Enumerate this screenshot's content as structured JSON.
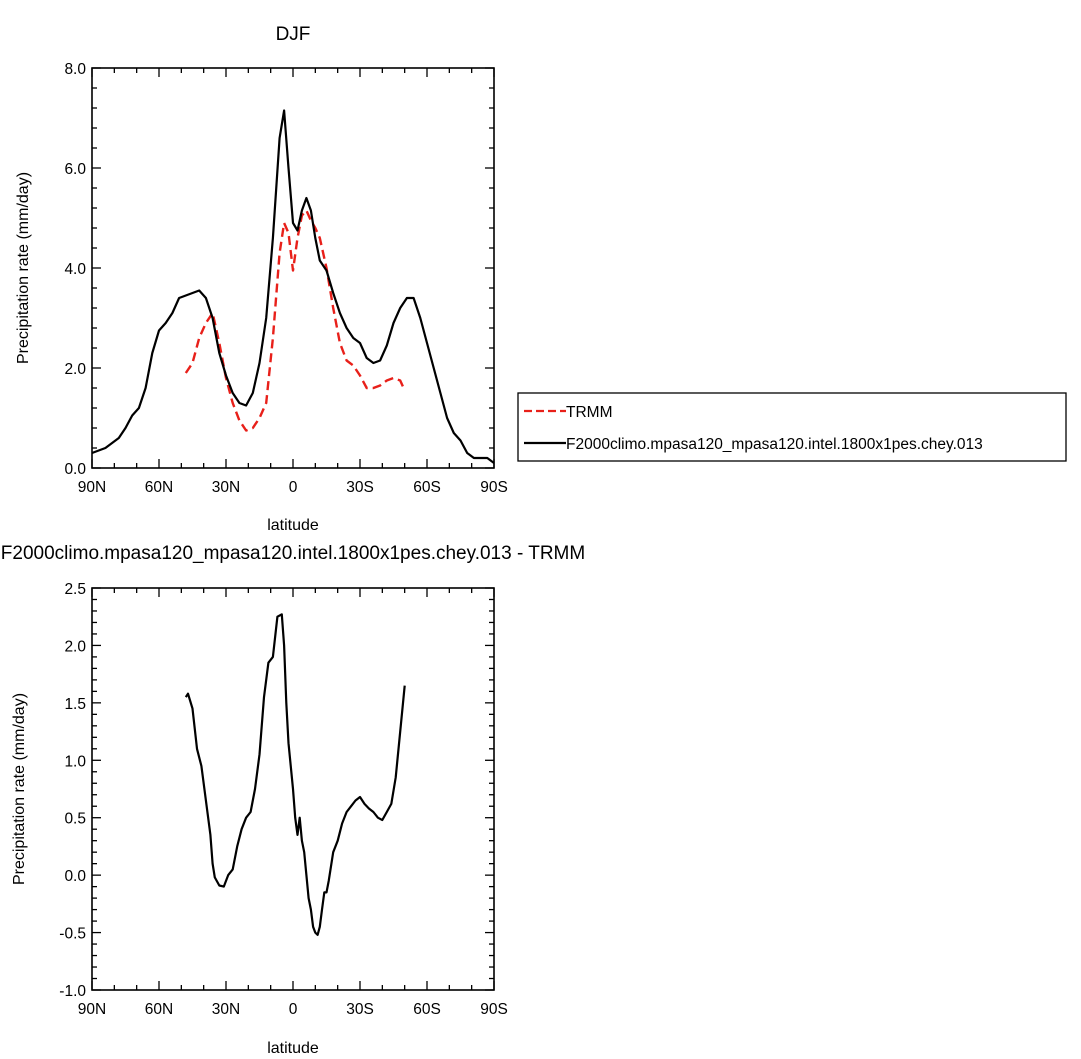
{
  "chart_data": [
    {
      "type": "line",
      "title": "DJF",
      "xlabel": "latitude",
      "ylabel": "Precipitation rate (mm/day)",
      "xlim": [
        -90,
        90
      ],
      "ylim": [
        0,
        8
      ],
      "x_ticks": [
        {
          "value": -90,
          "label": "90N"
        },
        {
          "value": -60,
          "label": "60N"
        },
        {
          "value": -30,
          "label": "30N"
        },
        {
          "value": 0,
          "label": "0"
        },
        {
          "value": 30,
          "label": "30S"
        },
        {
          "value": 60,
          "label": "60S"
        },
        {
          "value": 90,
          "label": "90S"
        }
      ],
      "y_ticks": [
        {
          "value": 0,
          "label": "0.0"
        },
        {
          "value": 2,
          "label": "2.0"
        },
        {
          "value": 4,
          "label": "4.0"
        },
        {
          "value": 6,
          "label": "6.0"
        },
        {
          "value": 8,
          "label": "8.0"
        }
      ],
      "grid": false,
      "legend": "outside-right",
      "series": [
        {
          "name": "TRMM",
          "color": "#e8201a",
          "style": "dashed",
          "x": [
            -48,
            -45,
            -42,
            -39,
            -36,
            -33,
            -30,
            -27,
            -24,
            -21,
            -18,
            -15,
            -12,
            -9,
            -6,
            -4,
            -2,
            0,
            2,
            4,
            6,
            8,
            10,
            12,
            15,
            18,
            21,
            24,
            27,
            30,
            33,
            36,
            39,
            42,
            45,
            48,
            50
          ],
          "values": [
            1.9,
            2.1,
            2.6,
            2.9,
            3.1,
            2.5,
            1.8,
            1.3,
            0.95,
            0.75,
            0.8,
            1.0,
            1.3,
            2.6,
            4.3,
            4.9,
            4.7,
            3.95,
            4.6,
            5.05,
            5.15,
            4.95,
            4.8,
            4.6,
            4.0,
            3.2,
            2.5,
            2.15,
            2.05,
            1.85,
            1.6,
            1.6,
            1.65,
            1.75,
            1.8,
            1.75,
            1.55
          ]
        },
        {
          "name": "F2000climo.mpasa120_mpasa120.intel.1800x1pes.chey.013",
          "color": "#000000",
          "style": "solid",
          "x": [
            -90,
            -87,
            -84,
            -81,
            -78,
            -75,
            -72,
            -69,
            -66,
            -63,
            -60,
            -57,
            -54,
            -51,
            -48,
            -45,
            -42,
            -39,
            -36,
            -33,
            -30,
            -27,
            -24,
            -21,
            -18,
            -15,
            -12,
            -9,
            -6,
            -4,
            -2,
            0,
            2,
            4,
            6,
            8,
            10,
            12,
            15,
            18,
            21,
            24,
            27,
            30,
            33,
            36,
            39,
            42,
            45,
            48,
            51,
            54,
            57,
            60,
            63,
            66,
            69,
            72,
            75,
            78,
            81,
            84,
            87,
            90
          ],
          "values": [
            0.3,
            0.35,
            0.4,
            0.5,
            0.6,
            0.8,
            1.05,
            1.2,
            1.6,
            2.3,
            2.75,
            2.9,
            3.1,
            3.4,
            3.45,
            3.5,
            3.55,
            3.4,
            3.0,
            2.3,
            1.85,
            1.5,
            1.3,
            1.25,
            1.5,
            2.1,
            3.0,
            4.6,
            6.6,
            7.15,
            6.0,
            4.9,
            4.75,
            5.15,
            5.4,
            5.15,
            4.6,
            4.15,
            3.95,
            3.5,
            3.1,
            2.8,
            2.6,
            2.5,
            2.2,
            2.1,
            2.15,
            2.45,
            2.9,
            3.2,
            3.4,
            3.4,
            3.0,
            2.5,
            2.0,
            1.5,
            1.0,
            0.7,
            0.55,
            0.3,
            0.2,
            0.2,
            0.2,
            0.1
          ]
        }
      ]
    },
    {
      "type": "line",
      "title": "F2000climo.mpasa120_mpasa120.intel.1800x1pes.chey.013 - TRMM",
      "xlabel": "latitude",
      "ylabel": "Precipitation rate (mm/day)",
      "xlim": [
        -90,
        90
      ],
      "ylim": [
        -1,
        2.5
      ],
      "x_ticks": [
        {
          "value": -90,
          "label": "90N"
        },
        {
          "value": -60,
          "label": "60N"
        },
        {
          "value": -30,
          "label": "30N"
        },
        {
          "value": 0,
          "label": "0"
        },
        {
          "value": 30,
          "label": "30S"
        },
        {
          "value": 60,
          "label": "60S"
        },
        {
          "value": 90,
          "label": "90S"
        }
      ],
      "y_ticks": [
        {
          "value": -1,
          "label": "-1.0"
        },
        {
          "value": -0.5,
          "label": "-0.5"
        },
        {
          "value": 0,
          "label": "0.0"
        },
        {
          "value": 0.5,
          "label": "0.5"
        },
        {
          "value": 1,
          "label": "1.0"
        },
        {
          "value": 1.5,
          "label": "1.5"
        },
        {
          "value": 2,
          "label": "2.0"
        },
        {
          "value": 2.5,
          "label": "2.5"
        }
      ],
      "grid": false,
      "series": [
        {
          "color": "#000000",
          "style": "solid",
          "x": [
            -48,
            -47,
            -45,
            -43,
            -41,
            -39,
            -37,
            -36,
            -35,
            -33,
            -31,
            -29,
            -27,
            -25,
            -23,
            -21,
            -19,
            -17,
            -15,
            -13,
            -11,
            -9,
            -7,
            -5,
            -4,
            -3,
            -2,
            0,
            1,
            2,
            3,
            4,
            5,
            6,
            7,
            8,
            9,
            10,
            11,
            12,
            13,
            14,
            15,
            16,
            18,
            20,
            22,
            24,
            26,
            28,
            30,
            32,
            34,
            36,
            38,
            40,
            42,
            44,
            46,
            48,
            50
          ],
          "values": [
            1.55,
            1.58,
            1.45,
            1.1,
            0.95,
            0.65,
            0.35,
            0.1,
            -0.02,
            -0.09,
            -0.1,
            0.0,
            0.05,
            0.25,
            0.4,
            0.5,
            0.55,
            0.75,
            1.05,
            1.55,
            1.85,
            1.9,
            2.25,
            2.27,
            2.0,
            1.5,
            1.15,
            0.75,
            0.5,
            0.35,
            0.5,
            0.3,
            0.2,
            0.0,
            -0.2,
            -0.3,
            -0.45,
            -0.5,
            -0.52,
            -0.45,
            -0.3,
            -0.15,
            -0.15,
            -0.05,
            0.2,
            0.3,
            0.45,
            0.55,
            0.6,
            0.65,
            0.68,
            0.62,
            0.58,
            0.55,
            0.5,
            0.48,
            0.55,
            0.62,
            0.85,
            1.25,
            1.65
          ]
        }
      ]
    }
  ]
}
